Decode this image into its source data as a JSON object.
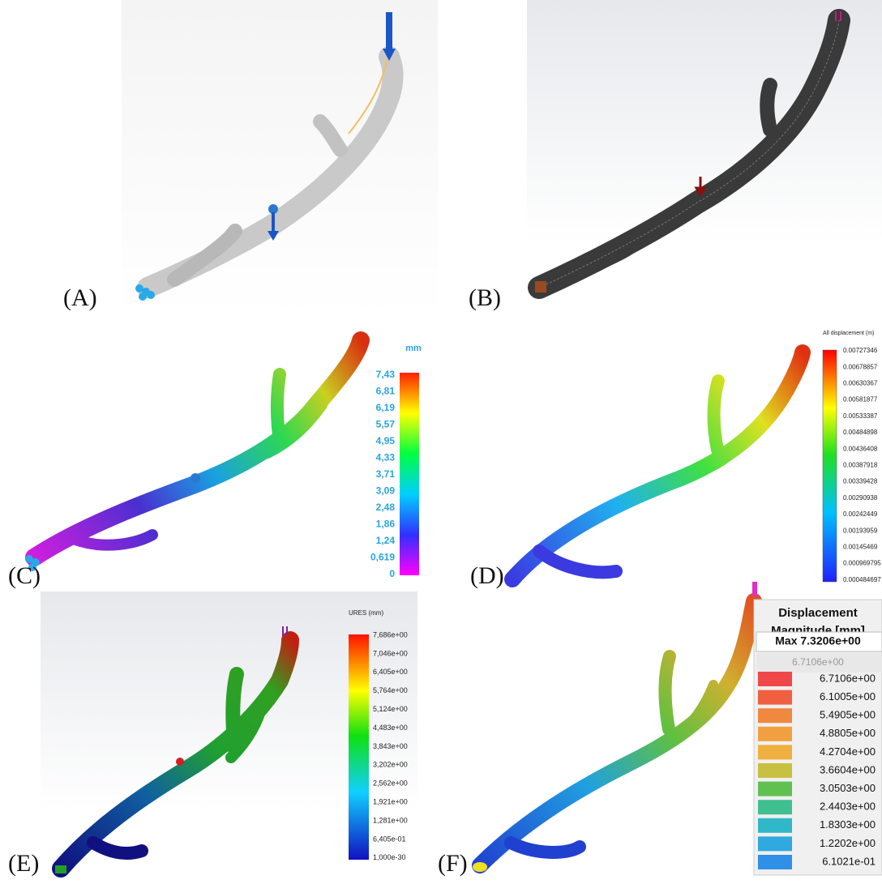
{
  "panels": [
    {
      "label": "(A)"
    },
    {
      "label": "(B)"
    },
    {
      "label": "(C)",
      "legend": {
        "title": "mm",
        "ticks": [
          "7,43",
          "6,81",
          "6,19",
          "5,57",
          "4,95",
          "4,33",
          "3,71",
          "3,09",
          "2,48",
          "1,86",
          "1,24",
          "0,619",
          "0"
        ]
      }
    },
    {
      "label": "(D)",
      "legend": {
        "title": "All displacement (m)",
        "ticks": [
          "0.00727346",
          "0.00678857",
          "0.00630367",
          "0.00581877",
          "0.00533387",
          "0.00484898",
          "0.00436408",
          "0.00387918",
          "0.00339428",
          "0.00290938",
          "0.00242449",
          "0.00193959",
          "0.00145469",
          "0.000969795",
          "0.000484697"
        ]
      }
    },
    {
      "label": "(E)",
      "legend": {
        "title": "URES (mm)",
        "ticks": [
          "7,686e+00",
          "7,046e+00",
          "6,405e+00",
          "5,764e+00",
          "5,124e+00",
          "4,483e+00",
          "3,843e+00",
          "3,202e+00",
          "2,562e+00",
          "1,921e+00",
          "1,281e+00",
          "6,405e-01",
          "1,000e-30"
        ]
      }
    },
    {
      "label": "(F)",
      "legend": {
        "title_lines": [
          "Displacement",
          "Magnitude [mm]"
        ],
        "max": "Max 7.3206e+00",
        "current": "6.7106e+00",
        "ticks": [
          "6.7106e+00",
          "6.1005e+00",
          "5.4905e+00",
          "4.8805e+00",
          "4.2704e+00",
          "3.6604e+00",
          "3.0503e+00",
          "2.4403e+00",
          "1.8303e+00",
          "1.2202e+00",
          "6.1021e-01"
        ]
      }
    }
  ]
}
